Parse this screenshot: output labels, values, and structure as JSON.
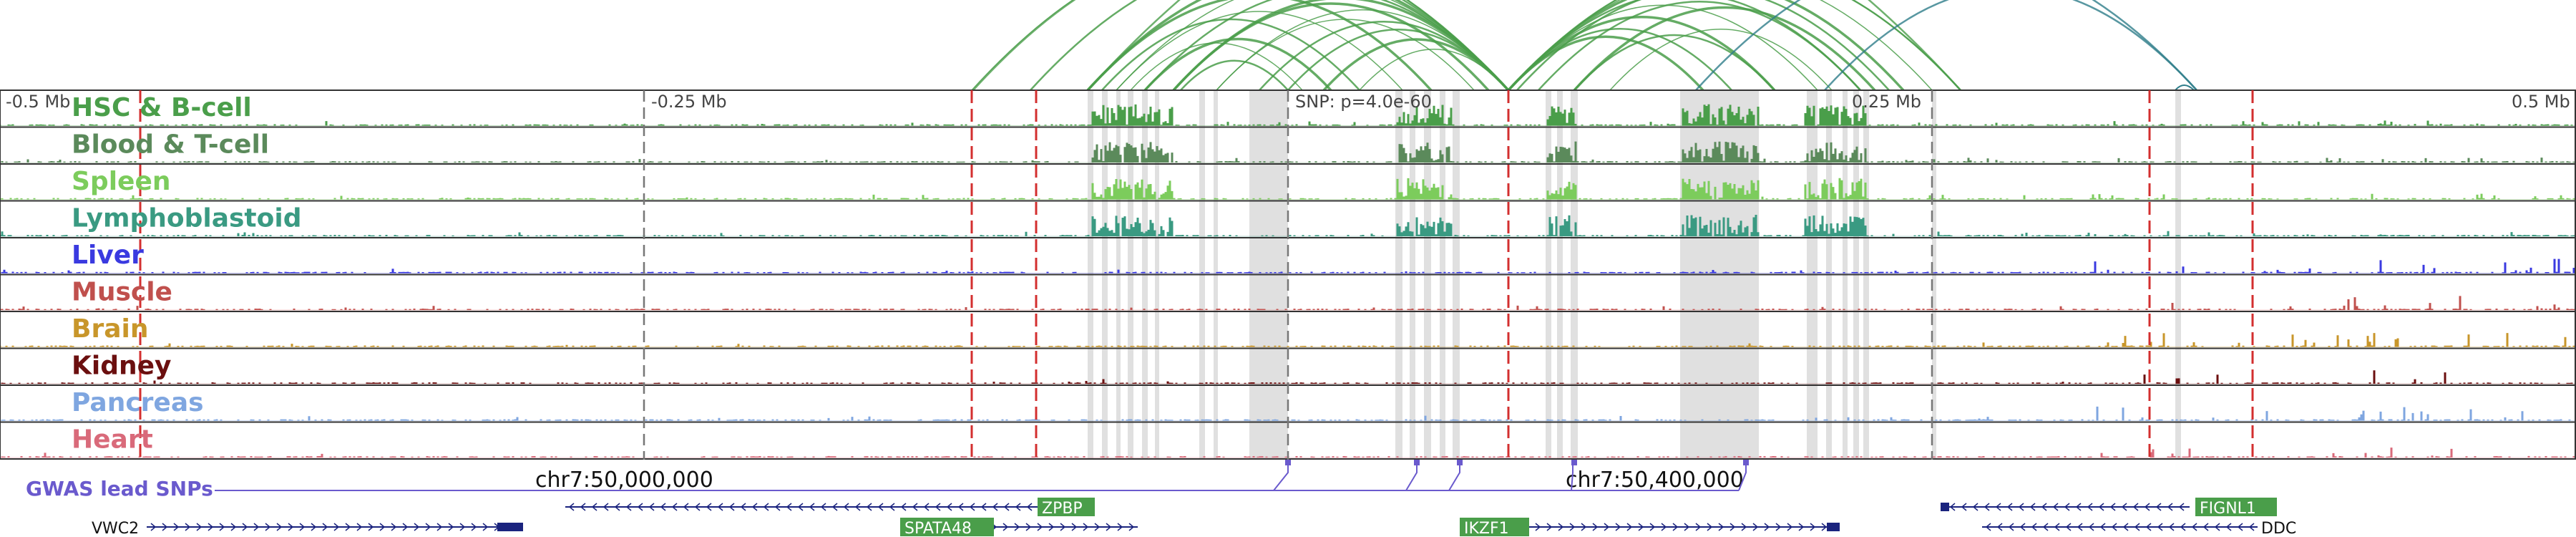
{
  "colors": {
    "loops": "#4a9e4a",
    "loops_blue": "#2e7d8a",
    "gwas": "#6a5acd",
    "gene_line": "#1a237e",
    "gene_label_bg": "#4a9e4a",
    "highlight": "#e0e0e0",
    "red_dash": "#d32f2f",
    "gray_dash": "#777777"
  },
  "ruler": {
    "labels": [
      "-0.5 Mb",
      "-0.25 Mb",
      "0.25 Mb",
      "0.5 Mb"
    ],
    "snp_label": "SNP: p=4.0e-60"
  },
  "tracks": [
    {
      "name": "HSC & B-cell",
      "color": "#4a9e4a"
    },
    {
      "name": "Blood & T-cell",
      "color": "#5b8a5b"
    },
    {
      "name": "Spleen",
      "color": "#7ccc5c"
    },
    {
      "name": "Lymphoblastoid",
      "color": "#3a9a82"
    },
    {
      "name": "Liver",
      "color": "#3a3ae0"
    },
    {
      "name": "Muscle",
      "color": "#c0504d"
    },
    {
      "name": "Brain",
      "color": "#c8962a"
    },
    {
      "name": "Kidney",
      "color": "#6b0f0f"
    },
    {
      "name": "Pancreas",
      "color": "#7fa6e0"
    },
    {
      "name": "Heart",
      "color": "#d96a7a"
    }
  ],
  "gwas": {
    "label": "GWAS lead SNPs",
    "coord_left": "chr7:50,000,000",
    "coord_right": "chr7:50,400,000"
  },
  "genes": [
    {
      "name": "VWC2",
      "label_side": "left",
      "dir": ">"
    },
    {
      "name": "ZPBP",
      "label_side": "box",
      "dir": "<"
    },
    {
      "name": "SPATA48",
      "label_side": "box",
      "dir": ">"
    },
    {
      "name": "IKZF1",
      "label_side": "box",
      "dir": ">"
    },
    {
      "name": "FIGNL1",
      "label_side": "box",
      "dir": "<"
    },
    {
      "name": "DDC",
      "label_side": "right",
      "dir": "<"
    }
  ]
}
